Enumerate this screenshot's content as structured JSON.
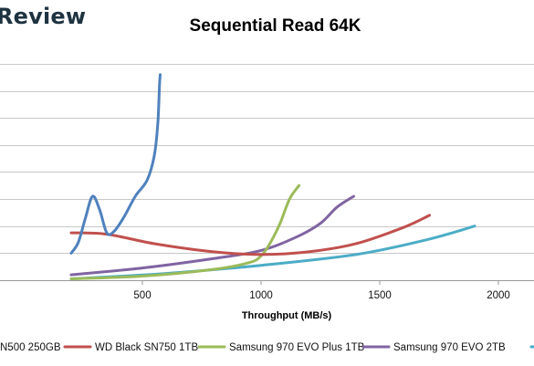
{
  "header": {
    "brand": "Review"
  },
  "chart_data": {
    "type": "line",
    "title": "Sequential Read 64K",
    "xlabel": "Throughput (MB/s)",
    "ylabel": "",
    "xlim": [
      -100,
      2150
    ],
    "ylim": [
      0,
      8.4
    ],
    "x_ticks": [
      500,
      1000,
      1500,
      2000
    ],
    "y_gridlines": [
      0,
      1,
      2,
      3,
      4,
      5,
      6,
      7,
      8
    ],
    "grid": true,
    "legend_position": "bottom",
    "series": [
      {
        "name": "N500 250GB",
        "color": "#4f81bd",
        "x": [
          200,
          230,
          260,
          290,
          320,
          350,
          380,
          420,
          470,
          520,
          550,
          565,
          572,
          575
        ],
        "y": [
          1.0,
          1.4,
          2.3,
          3.1,
          2.6,
          1.75,
          1.8,
          2.3,
          3.1,
          3.7,
          4.6,
          5.8,
          7.2,
          7.6
        ]
      },
      {
        "name": "WD Black SN750 1TB",
        "color": "#c0504d",
        "x": [
          200,
          350,
          550,
          800,
          1000,
          1200,
          1400,
          1600,
          1710
        ],
        "y": [
          1.75,
          1.7,
          1.35,
          1.05,
          0.95,
          1.05,
          1.35,
          1.95,
          2.4
        ]
      },
      {
        "name": "Samsung 970 EVO Plus 1TB",
        "color": "#9bbb59",
        "x": [
          200,
          500,
          800,
          950,
          1000,
          1040,
          1080,
          1120,
          1160
        ],
        "y": [
          0.05,
          0.15,
          0.4,
          0.65,
          0.9,
          1.4,
          2.1,
          3.0,
          3.5
        ]
      },
      {
        "name": "Samsung 970 EVO 2TB",
        "color": "#8064a2",
        "x": [
          200,
          500,
          800,
          1000,
          1150,
          1250,
          1320,
          1390
        ],
        "y": [
          0.2,
          0.45,
          0.8,
          1.1,
          1.6,
          2.1,
          2.7,
          3.1
        ]
      },
      {
        "name": "",
        "color": "#4bacc6",
        "x": [
          200,
          600,
          1000,
          1400,
          1700,
          1900
        ],
        "y": [
          0.05,
          0.25,
          0.55,
          0.95,
          1.5,
          2.0
        ]
      }
    ]
  }
}
